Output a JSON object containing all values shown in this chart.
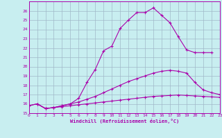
{
  "xlabel": "Windchill (Refroidissement éolien,°C)",
  "bg_color": "#c8eef0",
  "grid_color": "#a0b8c8",
  "line_color": "#aa00aa",
  "xlim": [
    0,
    23
  ],
  "ylim": [
    15,
    27
  ],
  "xticks": [
    0,
    1,
    2,
    3,
    4,
    5,
    6,
    7,
    8,
    9,
    10,
    11,
    12,
    13,
    14,
    15,
    16,
    17,
    18,
    19,
    20,
    21,
    22,
    23
  ],
  "yticks": [
    15,
    16,
    17,
    18,
    19,
    20,
    21,
    22,
    23,
    24,
    25,
    26
  ],
  "curve1_x": [
    0,
    1,
    2,
    3,
    4,
    5,
    6,
    7,
    8,
    9,
    10,
    11,
    12,
    13,
    14,
    15,
    16,
    17,
    18,
    19,
    20,
    21,
    22,
    23
  ],
  "curve1_y": [
    15.8,
    16.0,
    15.5,
    15.6,
    15.7,
    15.8,
    15.9,
    16.0,
    16.1,
    16.2,
    16.3,
    16.4,
    16.5,
    16.6,
    16.7,
    16.8,
    16.85,
    16.9,
    16.95,
    16.9,
    16.85,
    16.8,
    16.75,
    16.7
  ],
  "curve2_x": [
    0,
    1,
    2,
    3,
    4,
    5,
    6,
    7,
    8,
    9,
    10,
    11,
    12,
    13,
    14,
    15,
    16,
    17,
    18,
    19,
    20,
    21,
    22,
    23
  ],
  "curve2_y": [
    15.8,
    16.0,
    15.5,
    15.6,
    15.8,
    16.0,
    16.2,
    16.5,
    16.8,
    17.2,
    17.6,
    18.0,
    18.4,
    18.7,
    19.0,
    19.3,
    19.5,
    19.6,
    19.5,
    19.3,
    18.3,
    17.5,
    17.2,
    17.0
  ],
  "curve3_x": [
    1,
    2,
    3,
    4,
    5,
    6,
    7,
    8,
    9,
    10,
    11,
    12,
    13,
    14,
    15,
    16,
    17,
    18,
    19,
    20,
    21,
    22
  ],
  "curve3_y": [
    16.0,
    15.5,
    15.6,
    15.8,
    16.0,
    16.6,
    18.3,
    19.7,
    21.7,
    22.2,
    24.1,
    25.0,
    25.8,
    25.8,
    26.3,
    25.5,
    24.7,
    23.2,
    21.8,
    21.5,
    21.5,
    21.5
  ]
}
